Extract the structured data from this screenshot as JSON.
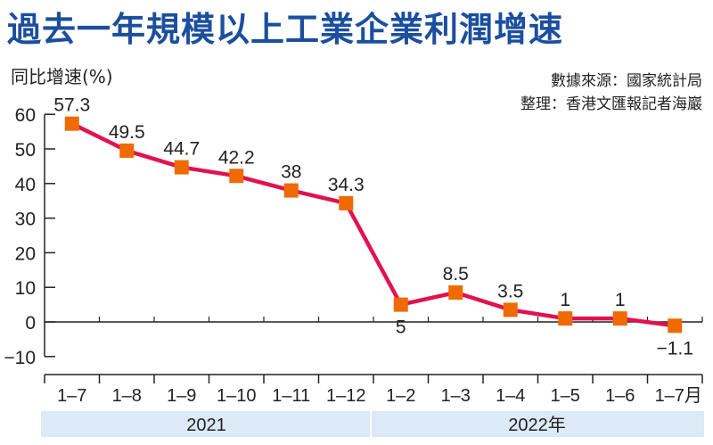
{
  "title": "過去一年規模以上工業企業利潤增速",
  "source_line": "數據來源：國家統計局",
  "editor_line": "整理：香港文匯報記者海巖",
  "colors": {
    "title": "#1b4f9e",
    "line": "#e0134e",
    "marker": "#ef6a00",
    "band": "#dce9f6"
  },
  "chart_data": {
    "type": "line",
    "title": "過去一年規模以上工業企業利潤增速",
    "ylabel": "同比增速(%)",
    "xlabel": "",
    "categories": [
      "1–7",
      "1–8",
      "1–9",
      "1–10",
      "1–11",
      "1–12",
      "1–2",
      "1–3",
      "1–4",
      "1–5",
      "1–6",
      "1–7月"
    ],
    "values": [
      57.3,
      49.5,
      44.7,
      42.2,
      38,
      34.3,
      5,
      8.5,
      3.5,
      1,
      1,
      -1.1
    ],
    "data_labels": [
      "57.3",
      "49.5",
      "44.7",
      "42.2",
      "38",
      "34.3",
      "5",
      "8.5",
      "3.5",
      "1",
      "1",
      "−1.1"
    ],
    "yticks": [
      "60",
      "50",
      "40",
      "30",
      "20",
      "10",
      "0",
      "−10"
    ],
    "ytick_values": [
      60,
      50,
      40,
      30,
      20,
      10,
      0,
      -10
    ],
    "ylim": [
      -10,
      60
    ],
    "groups": [
      {
        "label": "2021",
        "count": 6
      },
      {
        "label": "2022年",
        "count": 6
      }
    ],
    "grid": false,
    "legend": "none"
  }
}
